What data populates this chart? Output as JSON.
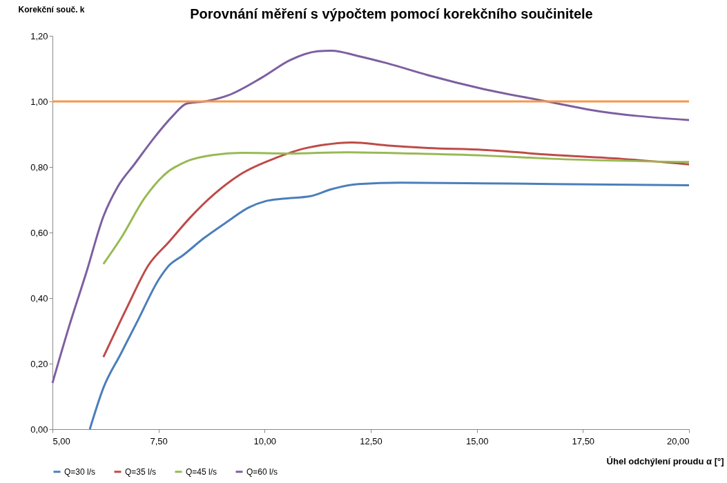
{
  "chart_data": {
    "type": "line",
    "title": "Porovnání měření s výpočtem pomocí korekčního součinitele",
    "xlabel": "Úhel odchýlení proudu α [°]",
    "ylabel": "Korekční souč. k",
    "xlim": [
      5,
      20
    ],
    "ylim": [
      0,
      1.2
    ],
    "xticks": [
      {
        "value": 5,
        "label": "5,00"
      },
      {
        "value": 7.5,
        "label": "7,50"
      },
      {
        "value": 10,
        "label": "10,00"
      },
      {
        "value": 12.5,
        "label": "12,50"
      },
      {
        "value": 15,
        "label": "15,00"
      },
      {
        "value": 17.5,
        "label": "17,50"
      },
      {
        "value": 20,
        "label": "20,00"
      }
    ],
    "yticks": [
      {
        "value": 0,
        "label": "0,00"
      },
      {
        "value": 0.2,
        "label": "0,20"
      },
      {
        "value": 0.4,
        "label": "0,40"
      },
      {
        "value": 0.6,
        "label": "0,60"
      },
      {
        "value": 0.8,
        "label": "0,80"
      },
      {
        "value": 1,
        "label": "1,00"
      },
      {
        "value": 1.2,
        "label": "1,20"
      }
    ],
    "grid": false,
    "legend": "bottom",
    "marker": "none",
    "line_style": "solid",
    "ref_lines": [
      {
        "axis": "y",
        "value": 1,
        "color": "#f79646"
      }
    ],
    "series": [
      {
        "name": "Q=30 l/s",
        "color": "#4a7ebb",
        "x": [
          5.88,
          6.2,
          6.61,
          7.02,
          7.51,
          7.75,
          8.07,
          8.56,
          9.13,
          9.62,
          10.03,
          10.43,
          11.08,
          11.57,
          12.22,
          13.2,
          15.15,
          16.78,
          20
        ],
        "values": [
          0,
          0.126,
          0.23,
          0.334,
          0.458,
          0.5,
          0.53,
          0.582,
          0.634,
          0.676,
          0.696,
          0.703,
          0.711,
          0.732,
          0.748,
          0.752,
          0.75,
          0.748,
          0.744
        ]
      },
      {
        "name": "Q=35 l/s",
        "color": "#be4b48",
        "x": [
          6.2,
          6.77,
          7.26,
          7.75,
          8.24,
          8.81,
          9.46,
          10.27,
          10.92,
          11.41,
          12.06,
          12.87,
          13.85,
          15.15,
          16.78,
          18.4,
          20
        ],
        "values": [
          0.22,
          0.375,
          0.5,
          0.572,
          0.645,
          0.717,
          0.78,
          0.828,
          0.856,
          0.868,
          0.875,
          0.866,
          0.858,
          0.852,
          0.837,
          0.825,
          0.808
        ]
      },
      {
        "name": "Q=45 l/s",
        "color": "#98b954",
        "x": [
          6.2,
          6.61,
          7.18,
          7.67,
          8.16,
          8.81,
          9.46,
          10.6,
          11.9,
          13.52,
          15.15,
          16.78,
          20
        ],
        "values": [
          0.504,
          0.582,
          0.707,
          0.78,
          0.817,
          0.837,
          0.843,
          0.841,
          0.845,
          0.841,
          0.835,
          0.825,
          0.815
        ]
      },
      {
        "name": "Q=60 l/s",
        "color": "#7d5fa0",
        "x": [
          5,
          5.39,
          5.8,
          6.2,
          6.53,
          6.94,
          7.42,
          7.83,
          8.16,
          8.64,
          9.13,
          9.95,
          10.6,
          11.25,
          11.57,
          12.22,
          12.87,
          13.85,
          15.15,
          16.78,
          17.6,
          20
        ],
        "values": [
          0.141,
          0.313,
          0.479,
          0.649,
          0.738,
          0.81,
          0.893,
          0.955,
          0.993,
          1.001,
          1.018,
          1.074,
          1.126,
          1.153,
          1.155,
          1.138,
          1.117,
          1.08,
          1.038,
          0.997,
          0.976,
          0.943
        ]
      }
    ]
  }
}
